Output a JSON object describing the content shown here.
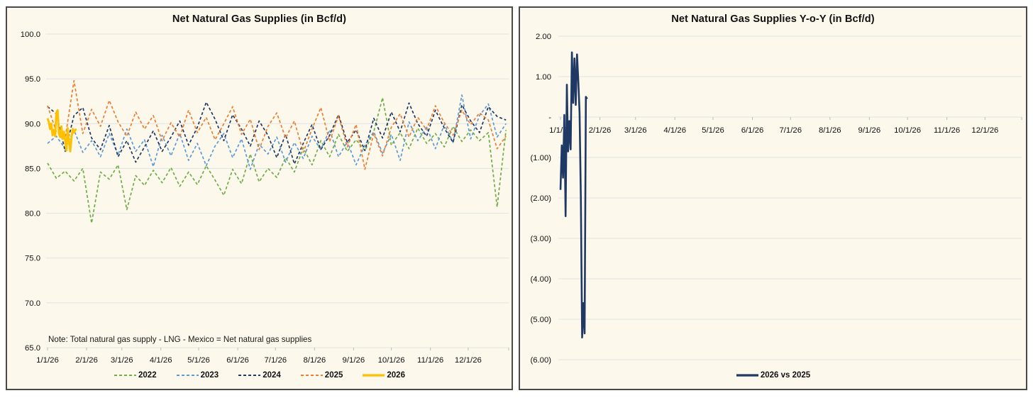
{
  "style": {
    "panel_background": "#FCF8EC",
    "panel_border": "#4a4a4a",
    "grid_color": "#E0E3E3",
    "text_color": "#111111"
  },
  "chart_data": [
    {
      "type": "line",
      "title": "Net Natural Gas Supplies (in Bcf/d)",
      "note": "Note: Total natural gas supply - LNG - Mexico = Net natural gas supplies",
      "ylim": [
        65,
        100
      ],
      "y_tick_values": [
        100,
        95,
        90,
        85,
        80,
        75,
        70,
        65
      ],
      "y_tick_labels": [
        "100.0",
        "95.0",
        "90.0",
        "85.0",
        "80.0",
        "75.0",
        "70.0",
        "65.0"
      ],
      "x_tick_labels": [
        "1/1/26",
        "2/1/26",
        "3/1/26",
        "4/1/26",
        "5/1/26",
        "6/1/26",
        "7/1/26",
        "8/1/26",
        "9/1/26",
        "10/1/26",
        "11/1/26",
        "12/1/26"
      ],
      "grid": true,
      "legend_position": "bottom",
      "series": [
        {
          "name": "2022",
          "color": "#70AD47",
          "style": "dashed",
          "width": 1.7,
          "x_start_day": 1,
          "x_step_days": 7,
          "values": [
            85.6,
            83.9,
            84.7,
            83.6,
            85.0,
            78.9,
            84.6,
            83.8,
            85.4,
            80.4,
            84.2,
            83.1,
            84.8,
            83.4,
            85.1,
            83.0,
            84.6,
            83.2,
            85.3,
            83.7,
            82.0,
            84.9,
            83.3,
            86.6,
            83.5,
            85.0,
            84.0,
            86.2,
            84.6,
            87.3,
            85.4,
            88.1,
            86.3,
            88.8,
            86.9,
            88.2,
            87.0,
            89.1,
            92.9,
            87.6,
            89.0,
            87.2,
            89.5,
            87.8,
            88.9,
            87.4,
            89.7,
            88.0,
            89.3,
            88.1,
            89.0,
            80.7,
            89.3
          ]
        },
        {
          "name": "2023",
          "color": "#5B9BD5",
          "style": "dashed",
          "width": 1.7,
          "x_start_day": 1,
          "x_step_days": 7,
          "values": [
            87.8,
            88.6,
            87.2,
            89.3,
            86.8,
            88.1,
            86.3,
            88.9,
            86.5,
            89.4,
            86.9,
            88.2,
            85.2,
            88.7,
            86.4,
            88.9,
            85.9,
            87.8,
            85.3,
            87.5,
            88.9,
            86.2,
            88.3,
            84.9,
            87.7,
            86.6,
            88.5,
            85.7,
            87.9,
            86.1,
            88.6,
            87.1,
            89.3,
            86.3,
            88.0,
            85.4,
            87.6,
            89.1,
            86.7,
            88.8,
            85.9,
            90.2,
            88.1,
            89.6,
            87.2,
            89.9,
            87.9,
            93.2,
            88.3,
            90.9,
            92.2,
            88.5,
            90.0
          ]
        },
        {
          "name": "2024",
          "color": "#203864",
          "style": "dashed",
          "width": 1.7,
          "x_start_day": 1,
          "x_step_days": 7,
          "values": [
            91.9,
            91.1,
            86.9,
            90.9,
            91.8,
            88.4,
            87.1,
            89.8,
            86.3,
            88.1,
            85.7,
            87.4,
            89.2,
            86.9,
            88.5,
            90.3,
            87.6,
            89.6,
            92.4,
            90.5,
            88.1,
            91.0,
            89.4,
            87.5,
            90.3,
            88.7,
            86.2,
            88.8,
            85.5,
            87.8,
            89.9,
            87.1,
            88.7,
            91.0,
            87.9,
            89.3,
            87.0,
            90.6,
            88.4,
            91.3,
            89.1,
            92.3,
            90.0,
            88.6,
            91.5,
            89.5,
            87.9,
            92.1,
            90.3,
            89.0,
            91.9,
            90.8,
            90.4
          ]
        },
        {
          "name": "2025",
          "color": "#ED7D31",
          "style": "dashed",
          "width": 1.7,
          "x_start_day": 1,
          "x_step_days": 7,
          "values": [
            92.0,
            89.1,
            88.4,
            94.8,
            88.9,
            91.6,
            89.7,
            92.6,
            90.2,
            88.6,
            91.3,
            89.4,
            90.9,
            88.1,
            90.1,
            88.5,
            91.5,
            89.0,
            90.7,
            88.2,
            90.0,
            91.9,
            88.8,
            90.5,
            87.1,
            89.7,
            91.2,
            88.4,
            90.3,
            86.8,
            89.4,
            91.8,
            88.0,
            90.9,
            87.4,
            89.9,
            84.9,
            88.9,
            86.4,
            89.6,
            91.1,
            88.5,
            90.7,
            89.3,
            92.0,
            90.1,
            88.7,
            91.5,
            89.9,
            91.2,
            90.4,
            87.2,
            88.6
          ]
        },
        {
          "name": "2026",
          "color": "#FFC000",
          "style": "solid",
          "width": 3,
          "x_start_day": 1,
          "x_step_days": 1,
          "values": [
            90.6,
            90.2,
            89.4,
            90.0,
            88.7,
            89.3,
            88.6,
            91.2,
            91.5,
            88.9,
            88.5,
            89.7,
            88.3,
            89.1,
            88.0,
            87.0,
            89.5,
            88.0,
            86.9,
            88.4,
            89.4,
            89.0,
            89.3,
            89.4
          ]
        }
      ]
    },
    {
      "type": "line",
      "title": "Net Natural Gas Supplies Y-o-Y (in Bcf/d)",
      "ylim": [
        -6,
        2
      ],
      "y_tick_values": [
        2,
        1,
        0,
        -1,
        -2,
        -3,
        -4,
        -5,
        -6
      ],
      "y_tick_labels": [
        "2.00",
        "1.00",
        "-",
        "(1.00)",
        "(2.00)",
        "(3.00)",
        "(4.00)",
        "(5.00)",
        "(6.00)"
      ],
      "x_tick_labels": [
        "1/1/26",
        "2/1/26",
        "3/1/26",
        "4/1/26",
        "5/1/26",
        "6/1/26",
        "7/1/26",
        "8/1/26",
        "9/1/26",
        "10/1/26",
        "11/1/26",
        "12/1/26"
      ],
      "grid": true,
      "legend_position": "bottom",
      "series": [
        {
          "name": "2026 vs 2025",
          "color": "#1F3864",
          "style": "solid",
          "width": 2.6,
          "x_start_day": 1,
          "x_step_days": 1,
          "values": [
            -1.8,
            -0.7,
            -1.5,
            0.05,
            -2.45,
            0.8,
            -0.85,
            -0.1,
            -0.8,
            1.6,
            0.35,
            1.45,
            0.3,
            1.55,
            0.9,
            0.1,
            -2.0,
            -5.45,
            -4.6,
            -5.35,
            0.5,
            0.45
          ]
        }
      ]
    }
  ]
}
